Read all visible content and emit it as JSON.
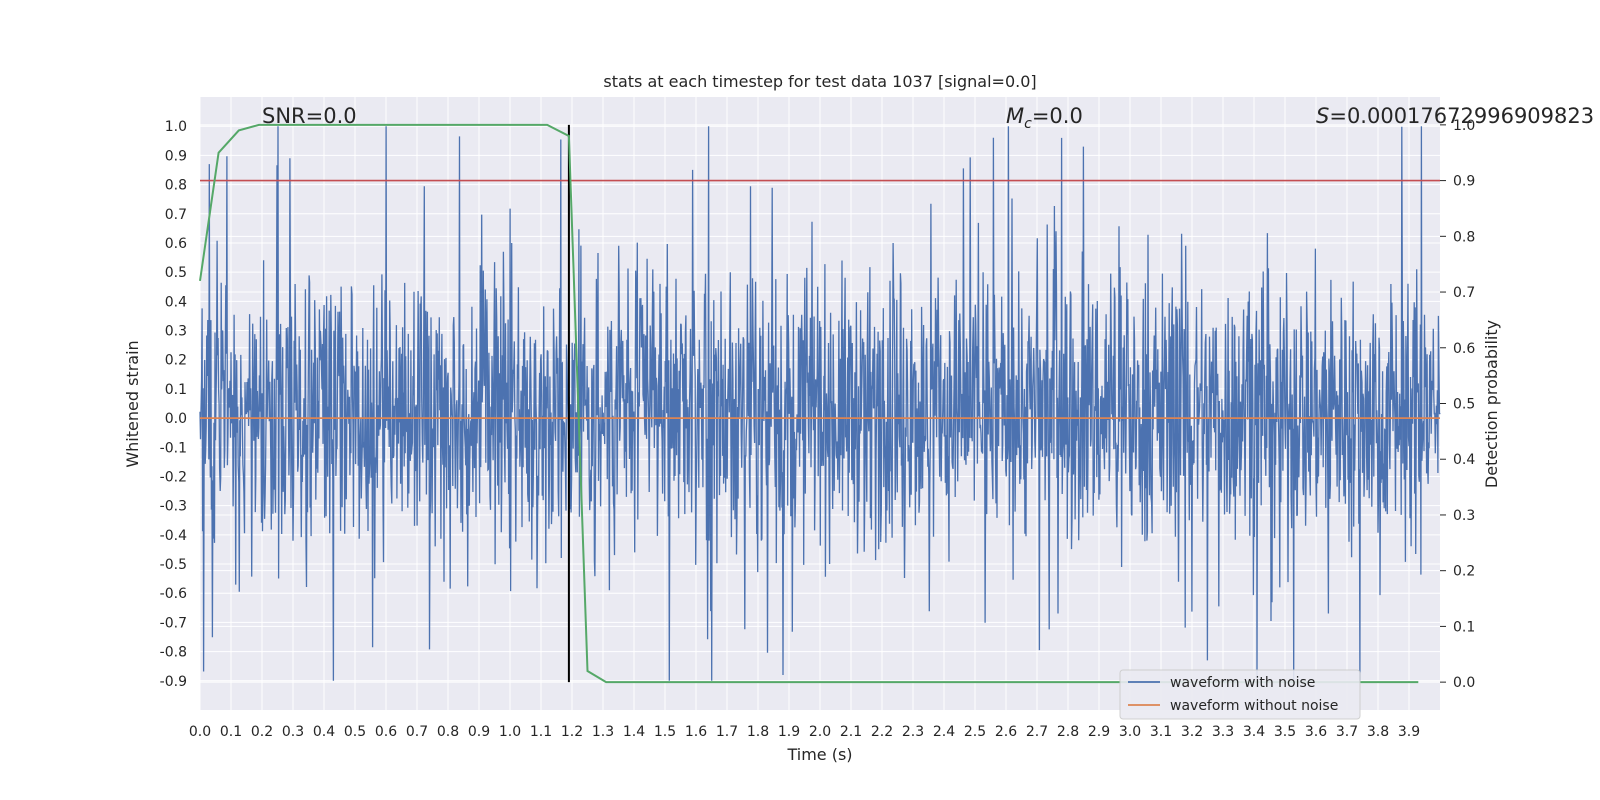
{
  "chart_data": {
    "type": "line",
    "title": "stats at each timestep for test data 1037 [signal=0.0]",
    "xlabel": "Time (s)",
    "ylabel": "Whitened strain",
    "y2label": "Detection probability",
    "xlim": [
      0.0,
      4.0
    ],
    "ylim": [
      -1.0,
      1.1
    ],
    "y2lim": [
      -0.05,
      1.05
    ],
    "xticks": [
      "0.0",
      "0.1",
      "0.2",
      "0.3",
      "0.4",
      "0.5",
      "0.6",
      "0.7",
      "0.8",
      "0.9",
      "1.0",
      "1.1",
      "1.2",
      "1.3",
      "1.4",
      "1.5",
      "1.6",
      "1.7",
      "1.8",
      "1.9",
      "2.0",
      "2.1",
      "2.2",
      "2.3",
      "2.4",
      "2.5",
      "2.6",
      "2.7",
      "2.8",
      "2.9",
      "3.0",
      "3.1",
      "3.2",
      "3.3",
      "3.4",
      "3.5",
      "3.6",
      "3.7",
      "3.8",
      "3.9"
    ],
    "yticks": [
      "1.0",
      "0.9",
      "0.8",
      "0.7",
      "0.6",
      "0.5",
      "0.4",
      "0.3",
      "0.2",
      "0.1",
      "0.0",
      "-0.1",
      "-0.2",
      "-0.3",
      "-0.4",
      "-0.5",
      "-0.6",
      "-0.7",
      "-0.8",
      "-0.9"
    ],
    "y2ticks": [
      "1.0",
      "0.9",
      "0.8",
      "0.7",
      "0.6",
      "0.5",
      "0.4",
      "0.3",
      "0.2",
      "0.1",
      "0.0"
    ],
    "grid": true,
    "legend_position": "lower-right",
    "annotations": {
      "snr": "SNR=0.0",
      "mc_symbol": "M",
      "mc_sub": "c",
      "mc_value": "=0.0",
      "s_symbol": "S",
      "s_value": "=0.00017672996909823"
    },
    "threshold": {
      "value": 0.9,
      "axis": "right",
      "color": "#c44e52"
    },
    "vline": {
      "x": 1.19,
      "color": "#000000"
    },
    "series": [
      {
        "name": "waveform with noise",
        "color": "#4c72b0",
        "axis": "left",
        "x_range": [
          0.0,
          4.0
        ],
        "note": "dense noise waveform, peaks roughly within -0.9 to 1.0",
        "sample_peaks": [
          [
            0.03,
            0.87
          ],
          [
            0.29,
            0.89
          ],
          [
            0.43,
            -0.9
          ],
          [
            1.64,
            1.0
          ],
          [
            1.65,
            -0.9
          ],
          [
            1.88,
            -0.88
          ],
          [
            2.78,
            0.96
          ],
          [
            2.85,
            0.93
          ],
          [
            3.25,
            -0.83
          ],
          [
            3.94,
            1.0
          ]
        ]
      },
      {
        "name": "waveform without noise",
        "color": "#dd8452",
        "axis": "left",
        "x": [
          0.0,
          4.0
        ],
        "values": [
          0.0,
          0.0
        ]
      },
      {
        "name": "Detection probability",
        "color": "#55a868",
        "axis": "right",
        "x": [
          0.0,
          0.06,
          0.125,
          0.19,
          0.5,
          1.0,
          1.12,
          1.19,
          1.25,
          1.31,
          1.5,
          2.0,
          3.0,
          3.93
        ],
        "values": [
          0.72,
          0.95,
          0.99,
          1.0,
          1.0,
          1.0,
          1.0,
          0.98,
          0.02,
          0.0,
          0.0,
          0.0,
          0.0,
          0.0
        ]
      }
    ]
  },
  "colors": {
    "axes_bg": "#eaeaf2",
    "grid": "#ffffff"
  }
}
